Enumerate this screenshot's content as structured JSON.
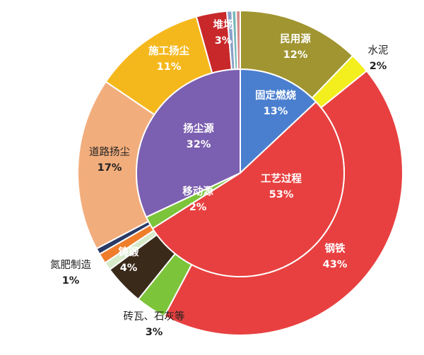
{
  "chart_data": {
    "type": "pie",
    "subtype": "nested-donut",
    "inner_ring": [
      {
        "name": "固定燃烧",
        "value": 13,
        "pct": "13%",
        "color": "#4a7fcf"
      },
      {
        "name": "工艺过程",
        "value": 53,
        "pct": "53%",
        "color": "#e84040"
      },
      {
        "name": "移动源",
        "value": 2,
        "pct": "2%",
        "color": "#7cc43a"
      },
      {
        "name": "扬尘源",
        "value": 32,
        "pct": "32%",
        "color": "#7b5fb0"
      }
    ],
    "outer_ring": [
      {
        "name": "民用源",
        "value": 12,
        "pct": "12%",
        "color": "#a09530"
      },
      {
        "name": "水泥",
        "value": 2,
        "pct": "2%",
        "color": "#f3ee1e"
      },
      {
        "name": "钢铁",
        "value": 43,
        "pct": "43%",
        "color": "#e84040"
      },
      {
        "name": "砖瓦、石灰等",
        "value": 3,
        "pct": "3%",
        "color": "#7cc43a"
      },
      {
        "name": "铸锻",
        "value": 4,
        "pct": "4%",
        "color": "#3a2a1a"
      },
      {
        "name": "",
        "value": 0.8,
        "pct": "",
        "color": "#d6eac8"
      },
      {
        "name": "氮肥制造",
        "value": 1,
        "pct": "1%",
        "color": "#ef7d2a"
      },
      {
        "name": "",
        "value": 0.6,
        "pct": "",
        "color": "#2a3a66"
      },
      {
        "name": "道路扬尘",
        "value": 17,
        "pct": "17%",
        "color": "#f2ad7c"
      },
      {
        "name": "施工扬尘",
        "value": 11,
        "pct": "11%",
        "color": "#f5b81c"
      },
      {
        "name": "堆场",
        "value": 3,
        "pct": "3%",
        "color": "#c8282a"
      },
      {
        "name": "",
        "value": 0.5,
        "pct": "",
        "color": "#8aa0c8"
      },
      {
        "name": "",
        "value": 0.4,
        "pct": "",
        "color": "#7ab8b8"
      },
      {
        "name": "",
        "value": 0.4,
        "pct": "",
        "color": "#d88888"
      }
    ]
  }
}
